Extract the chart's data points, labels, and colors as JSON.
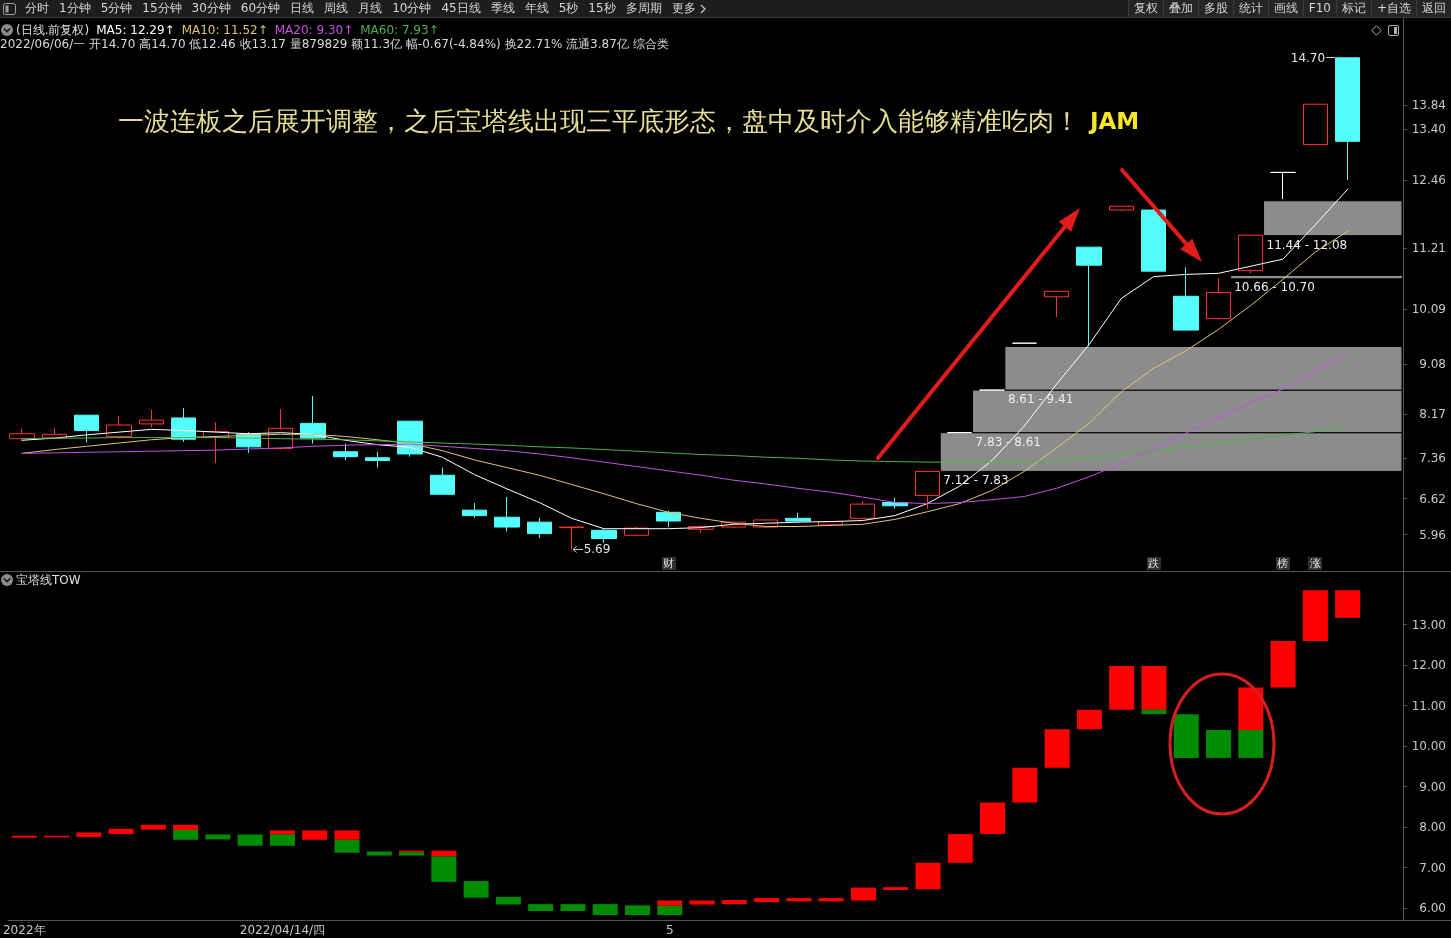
{
  "chart_data": [
    {
      "type": "other",
      "annotations": [
        "分时",
        "1分钟",
        "5分钟",
        "15分钟",
        "30分钟",
        "60分钟",
        "日线",
        "周线",
        "月线",
        "10分钟",
        "45日线",
        "季线",
        "年线",
        "5秒",
        "15秒",
        "多周期",
        "更多"
      ]
    },
    {
      "type": "other",
      "annotations": [
        "复权",
        "叠加",
        "多股",
        "统计",
        "画线",
        "F10",
        "标记",
        "+自选",
        "返回"
      ]
    },
    {
      "type": "candlestick",
      "title": "一波连板之后展开调整，之后宝塔线出现三平底形态，盘中及时介入能够精准吃肉！",
      "subtitle": "JAM",
      "legend_title": "(日线.前复权)",
      "legend": "top left",
      "tick_labels": "y",
      "categories": [
        null,
        null,
        null,
        null,
        null,
        null,
        null,
        null,
        null,
        null,
        null,
        null,
        null,
        null,
        null,
        null,
        null,
        null,
        null,
        null,
        null,
        null,
        null,
        null,
        null,
        null,
        null,
        null,
        null,
        null,
        null,
        null,
        null,
        null,
        null,
        null,
        null,
        null,
        null,
        null,
        null,
        null
      ],
      "ohlc": [
        [
          7.72,
          7.9,
          7.7,
          7.81
        ],
        [
          7.73,
          7.92,
          7.72,
          7.8
        ],
        [
          8.15,
          8.15,
          7.65,
          7.87
        ],
        [
          7.76,
          8.13,
          7.74,
          7.97
        ],
        [
          7.99,
          8.25,
          7.93,
          8.06
        ],
        [
          8.1,
          8.28,
          7.66,
          7.71
        ],
        [
          7.74,
          8.02,
          7.27,
          7.85
        ],
        [
          7.8,
          7.84,
          7.46,
          7.57
        ],
        [
          7.54,
          8.26,
          7.52,
          7.91
        ],
        [
          8.0,
          8.5,
          7.63,
          7.73
        ],
        [
          7.48,
          7.63,
          7.33,
          7.39
        ],
        [
          7.37,
          7.48,
          7.19,
          7.32
        ],
        [
          8.04,
          8.04,
          7.39,
          7.44
        ],
        [
          7.05,
          7.19,
          6.7,
          6.7
        ],
        [
          6.41,
          6.54,
          6.27,
          6.31
        ],
        [
          6.28,
          6.65,
          6.02,
          6.1
        ],
        [
          6.19,
          6.27,
          5.9,
          5.98
        ],
        [
          6.09,
          6.1,
          5.69,
          6.1
        ],
        [
          6.04,
          6.06,
          5.81,
          5.89
        ],
        [
          5.95,
          6.1,
          5.94,
          6.08
        ],
        [
          6.37,
          6.4,
          6.1,
          6.21
        ],
        [
          6.06,
          6.13,
          6.0,
          6.11
        ],
        [
          6.1,
          6.2,
          6.08,
          6.19
        ],
        [
          6.1,
          6.24,
          6.08,
          6.23
        ],
        [
          6.26,
          6.36,
          6.2,
          6.21
        ],
        [
          6.14,
          6.21,
          6.13,
          6.2
        ],
        [
          6.26,
          6.58,
          6.25,
          6.52
        ],
        [
          6.55,
          6.64,
          6.44,
          6.49
        ],
        [
          6.68,
          7.12,
          6.43,
          7.12
        ],
        [
          7.83,
          7.83,
          7.83,
          7.83
        ],
        [
          8.61,
          8.61,
          8.61,
          8.61
        ],
        [
          9.47,
          9.47,
          9.47,
          9.47
        ],
        [
          10.32,
          10.42,
          9.95,
          10.42
        ],
        [
          11.23,
          11.23,
          9.41,
          10.9
        ],
        [
          11.91,
          11.98,
          11.89,
          11.98
        ],
        [
          11.91,
          11.93,
          10.79,
          10.79
        ],
        [
          10.33,
          10.86,
          9.71,
          9.71
        ],
        [
          9.92,
          10.66,
          9.9,
          10.4
        ],
        [
          10.8,
          11.45,
          10.75,
          11.45
        ],
        [
          12.6,
          12.6,
          12.11,
          12.6
        ],
        [
          13.11,
          13.85,
          13.11,
          13.85
        ],
        [
          14.7,
          14.7,
          12.46,
          13.17
        ]
      ],
      "colors": [
        "#ff3232",
        "#ff3232",
        "#54fcfc",
        "#ff3232",
        "#ff3232",
        "#54fcfc",
        "#ff3232",
        "#54fcfc",
        "#ff3232",
        "#54fcfc",
        "#54fcfc",
        "#54fcfc",
        "#54fcfc",
        "#54fcfc",
        "#54fcfc",
        "#54fcfc",
        "#54fcfc",
        "#ff3232",
        "#54fcfc",
        "#ff3232",
        "#54fcfc",
        "#ff3232",
        "#ff3232",
        "#ff3232",
        "#54fcfc",
        "#ff3232",
        "#ff3232",
        "#54fcfc",
        "#ff3232",
        "#ffffff",
        "#ffffff",
        "#ffffff",
        "#ff3232",
        "#54fcfc",
        "#ff3232",
        "#54fcfc",
        "#54fcfc",
        "#ff3232",
        "#ff3232",
        "#ffffff",
        "#ff3232",
        "#54fcfc"
      ],
      "series": [
        {
          "type": "line",
          "name": "MA5: 12.29↑",
          "color": "#ffffff",
          "values": [
            7.69,
            7.73,
            7.79,
            7.84,
            7.89,
            7.87,
            7.84,
            7.81,
            7.83,
            7.8,
            7.69,
            7.61,
            7.56,
            7.38,
            7.06,
            6.8,
            6.55,
            6.26,
            6.07,
            6.07,
            6.07,
            6.09,
            6.15,
            6.17,
            6.19,
            6.2,
            6.22,
            6.31,
            6.53,
            6.85,
            7.32,
            7.95,
            8.72,
            9.44,
            10.29,
            10.69,
            10.73,
            10.75,
            10.88,
            11.01,
            11.64,
            12.29
          ]
        },
        {
          "type": "line",
          "name": "MA10: 11.52↑",
          "color": "#e0c470",
          "values": [
            7.45,
            7.52,
            7.58,
            7.64,
            7.7,
            7.74,
            7.76,
            7.78,
            7.8,
            7.8,
            7.76,
            7.7,
            7.63,
            7.5,
            7.33,
            7.19,
            7.05,
            6.88,
            6.71,
            6.53,
            6.37,
            6.26,
            6.17,
            6.11,
            6.11,
            6.13,
            6.15,
            6.24,
            6.38,
            6.53,
            6.77,
            7.12,
            7.55,
            8.0,
            8.58,
            9.01,
            9.33,
            9.72,
            10.16,
            10.64,
            11.14,
            11.52
          ]
        },
        {
          "type": "line",
          "name": "MA20: 9.30↑",
          "color": "#c84fe0",
          "values": [
            7.45,
            7.46,
            7.47,
            7.48,
            7.49,
            7.5,
            7.51,
            7.53,
            7.55,
            7.58,
            7.6,
            7.61,
            7.62,
            7.58,
            7.54,
            7.5,
            7.44,
            7.37,
            7.29,
            7.21,
            7.13,
            7.05,
            6.96,
            6.89,
            6.81,
            6.74,
            6.65,
            6.55,
            6.53,
            6.55,
            6.6,
            6.66,
            6.81,
            7.02,
            7.26,
            7.53,
            7.82,
            8.11,
            8.38,
            8.63,
            8.95,
            9.3
          ]
        },
        {
          "type": "line",
          "name": "MA60: 7.93↑",
          "color": "#4fb04f",
          "values": [
            7.72,
            7.73,
            7.73,
            7.74,
            7.74,
            7.74,
            7.74,
            7.73,
            7.72,
            7.71,
            7.7,
            7.68,
            7.66,
            7.64,
            7.62,
            7.6,
            7.57,
            7.55,
            7.52,
            7.49,
            7.46,
            7.43,
            7.41,
            7.38,
            7.36,
            7.33,
            7.31,
            7.3,
            7.29,
            7.29,
            7.29,
            7.3,
            7.32,
            7.36,
            7.42,
            7.49,
            7.57,
            7.64,
            7.71,
            7.78,
            7.85,
            7.93
          ]
        }
      ],
      "ylim": [
        5.3,
        15.43
      ],
      "yticks": [
        5.96,
        6.62,
        7.36,
        8.17,
        9.08,
        10.09,
        11.21,
        12.46,
        {
          "value": 13.4,
          "label": "13.40"
        },
        13.84
      ],
      "bands": [
        {
          "axis": "y",
          "from": 7.12,
          "to": 7.83,
          "label": "7.12 - 7.83",
          "color": "#8c8c8c"
        },
        {
          "axis": "y",
          "from": 7.83,
          "to": 8.61,
          "label": "7.83 - 8.61",
          "color": "#8c8c8c"
        },
        {
          "axis": "y",
          "from": 8.61,
          "to": 9.41,
          "label": "8.61 - 9.41",
          "color": "#8c8c8c"
        },
        {
          "axis": "y",
          "from": 10.66,
          "to": 10.7,
          "label": "10.66 - 10.70",
          "color": "#8c8c8c"
        },
        {
          "axis": "y",
          "from": 11.44,
          "to": 12.08,
          "label": "11.44 - 12.08",
          "color": "#8c8c8c"
        }
      ],
      "annotations": [
        "2022/06/06/一 开14.70 高14.70 低12.46 收13.17 量879829 额11.3亿 幅-0.67(-4.84%) 换22.71% 流通3.87亿 综合类",
        "14.70",
        "5.69",
        "财",
        "跌",
        "榜",
        "涨"
      ]
    },
    {
      "type": "bar",
      "title": "宝塔线TOW",
      "categories": [
        "2022年",
        null,
        null,
        null,
        null,
        null,
        null,
        null,
        "2022/04/14/四",
        null,
        null,
        null,
        null,
        null,
        null,
        null,
        null,
        null,
        null,
        null,
        "5",
        null,
        null,
        null,
        null,
        null,
        null,
        null,
        null,
        null,
        null,
        null,
        null,
        null,
        null,
        null,
        null,
        null,
        null,
        null,
        null,
        null
      ],
      "series": [
        {
          "color": "#ff0000",
          "base": [
            7.74,
            7.75,
            7.76,
            7.83,
            7.94,
            7.93,
            null,
            null,
            7.82,
            7.69,
            7.69,
            null,
            7.38,
            7.28,
            null,
            null,
            null,
            null,
            null,
            null,
            6.06,
            6.09,
            6.1,
            6.15,
            6.17,
            6.17,
            6.19,
            6.45,
            6.47,
            7.12,
            7.83,
            8.61,
            9.47,
            10.42,
            10.9,
            10.9,
            null,
            null,
            10.4,
            11.45,
            12.6,
            13.17
          ],
          "values": [
            0.05,
            0.04,
            0.11,
            0.13,
            0.12,
            0.13,
            null,
            null,
            0.1,
            0.23,
            0.23,
            null,
            0.04,
            0.14,
            null,
            null,
            null,
            null,
            null,
            null,
            0.13,
            0.1,
            0.1,
            0.1,
            0.08,
            0.08,
            0.32,
            0.07,
            0.65,
            0.71,
            0.78,
            0.86,
            0.95,
            0.48,
            1.08,
            1.08,
            null,
            null,
            1.05,
            1.15,
            1.25,
            0.68
          ]
        },
        {
          "color": "#008c00",
          "base": [
            null,
            null,
            null,
            null,
            null,
            7.69,
            7.7,
            7.54,
            7.54,
            null,
            7.37,
            7.3,
            7.3,
            6.65,
            6.26,
            6.09,
            5.93,
            5.93,
            5.83,
            5.83,
            5.83,
            null,
            null,
            null,
            null,
            null,
            null,
            null,
            null,
            null,
            null,
            null,
            null,
            null,
            null,
            10.79,
            9.71,
            9.71,
            9.71,
            null,
            null,
            null
          ],
          "values": [
            null,
            null,
            null,
            null,
            null,
            0.24,
            0.12,
            0.28,
            0.28,
            null,
            0.32,
            0.1,
            0.08,
            0.63,
            0.41,
            0.19,
            0.17,
            0.17,
            0.27,
            0.24,
            0.23,
            null,
            null,
            null,
            null,
            null,
            null,
            null,
            null,
            null,
            null,
            null,
            null,
            null,
            null,
            0.11,
            1.08,
            0.69,
            0.69,
            null,
            null,
            null
          ]
        }
      ],
      "ylim": [
        5.7,
        14.3
      ],
      "yticks": [
        {
          "value": 6,
          "label": "6.00"
        },
        {
          "value": 7,
          "label": "7.00"
        },
        {
          "value": 8,
          "label": "8.00"
        },
        {
          "value": 9,
          "label": "9.00"
        },
        {
          "value": 10,
          "label": "10.00"
        },
        {
          "value": 11,
          "label": "11.00"
        },
        {
          "value": 12,
          "label": "12.00"
        },
        {
          "value": 13,
          "label": "13.00"
        }
      ]
    }
  ]
}
